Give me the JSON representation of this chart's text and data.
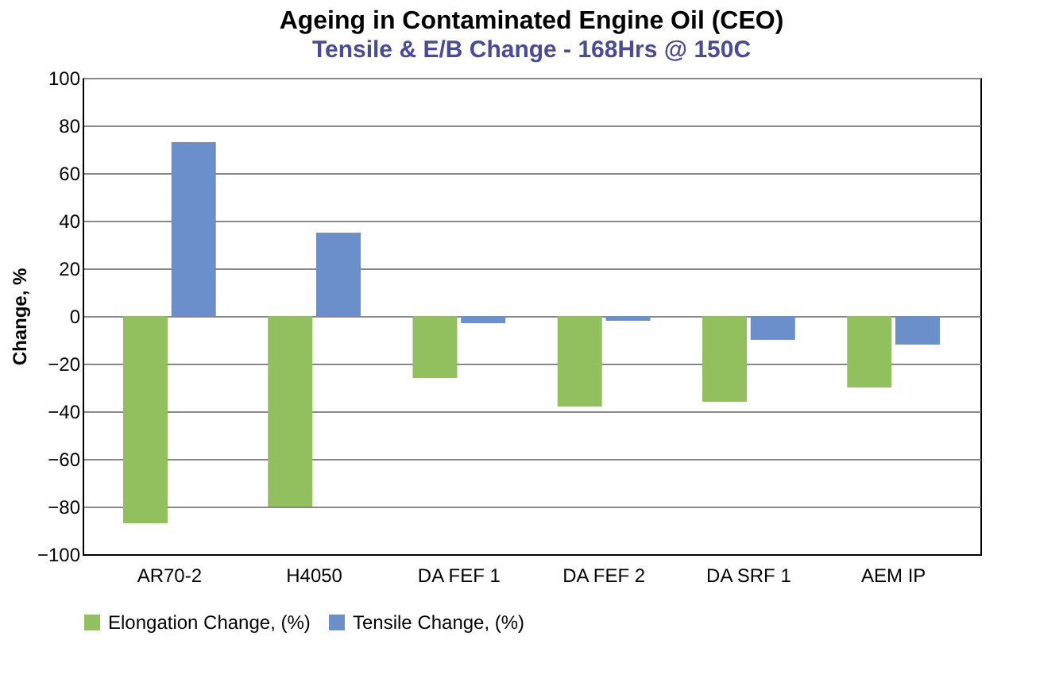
{
  "chart_data": {
    "type": "bar",
    "title": "Ageing in Contaminated Engine Oil (CEO)",
    "subtitle": "Tensile & E/B Change - 168Hrs @ 150C",
    "ylabel": "Change, %",
    "categories": [
      "AR70-2",
      "H4050",
      "DA FEF 1",
      "DA FEF 2",
      "DA SRF 1",
      "AEM IP"
    ],
    "series": [
      {
        "name": "Elongation Change, (%)",
        "color": "#92c05e",
        "values": [
          -87,
          -80,
          -26,
          -38,
          -36,
          -30
        ]
      },
      {
        "name": "Tensile Change, (%)",
        "color": "#6a8fcb",
        "values": [
          73,
          35,
          -3,
          -2,
          -10,
          -12
        ]
      }
    ],
    "ylim": [
      -100,
      100
    ],
    "yticks": [
      -100,
      -80,
      -60,
      -40,
      -20,
      0,
      20,
      40,
      60,
      80,
      100
    ],
    "grid": "y",
    "legend": "bottom"
  }
}
